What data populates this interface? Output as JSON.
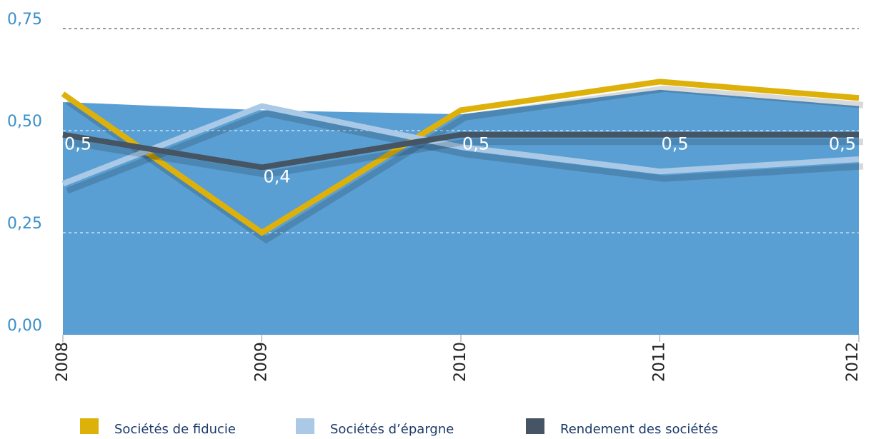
{
  "chart_data": {
    "type": "line",
    "categories": [
      "2008",
      "2009",
      "2010",
      "2011",
      "2012"
    ],
    "area": {
      "color": "#5a9fd4",
      "values": [
        0.57,
        0.55,
        0.54,
        0.6,
        0.56
      ]
    },
    "series": [
      {
        "name": "Sociétés de fiducie",
        "color": "#ddb10a",
        "values": [
          0.59,
          0.25,
          0.55,
          0.62,
          0.58
        ]
      },
      {
        "name": "Sociétés d’épargne",
        "color": "#a9c9e7",
        "values": [
          0.37,
          0.56,
          0.46,
          0.4,
          0.43
        ]
      },
      {
        "name": "Rendement des sociétés",
        "color": "#455563",
        "values": [
          0.49,
          0.41,
          0.49,
          0.49,
          0.49
        ],
        "value_labels": [
          "0,5",
          "0,4",
          "0,5",
          "0,5",
          "0,5"
        ]
      }
    ],
    "ylim": [
      0,
      0.75
    ],
    "yticks": [
      {
        "value": 0,
        "label": "0,00"
      },
      {
        "value": 0.25,
        "label": "0,25"
      },
      {
        "value": 0.5,
        "label": "0,50"
      },
      {
        "value": 0.75,
        "label": "0,75"
      }
    ],
    "grid": true
  }
}
